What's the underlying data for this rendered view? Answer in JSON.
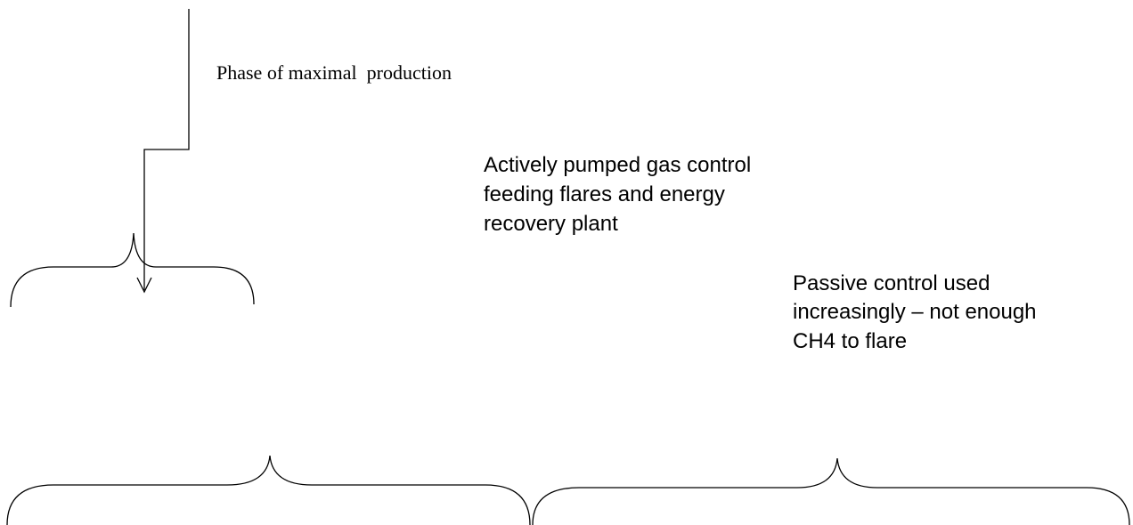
{
  "labels": [
    {
      "lines": [
        "Phase of maximal  production"
      ]
    },
    {
      "lines": [
        "Actively pumped gas control",
        "feeding flares and energy",
        "recovery plant"
      ]
    },
    {
      "lines": [
        "Passive control used",
        "increasingly – not enough",
        "CH4 to flare"
      ]
    }
  ]
}
